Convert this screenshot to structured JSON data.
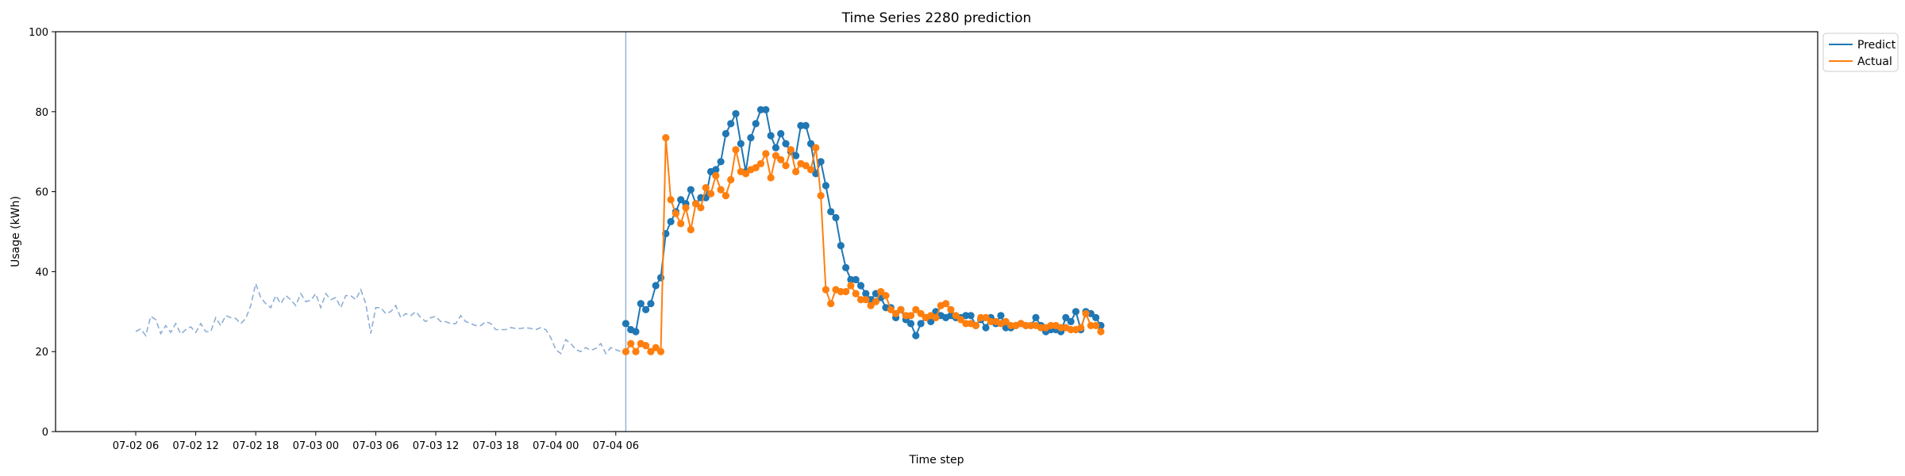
{
  "chart_data": {
    "type": "line",
    "title": "Time Series 2280 prediction",
    "xlabel": "Time step",
    "ylabel": "Usage (kWh)",
    "ylim": [
      0,
      100
    ],
    "y_ticks": [
      "0",
      "20",
      "40",
      "60",
      "80",
      "100"
    ],
    "x_ticks": [
      "07-02 06",
      "07-02 12",
      "07-02 18",
      "07-03 00",
      "07-03 06",
      "07-03 12",
      "07-03 18",
      "07-04 00",
      "07-04 06"
    ],
    "grid": false,
    "legend_position": "outside-top-right",
    "start": "07-02 06:00",
    "interval_minutes": 30,
    "forecast_start": "07-03 06:00",
    "colors": {
      "Predict": "#1f77b4",
      "Actual": "#ff7f0e",
      "history": "#8faed3",
      "divider": "#8faed3"
    },
    "history": {
      "style": "dashed",
      "values": [
        25.0,
        25.7,
        24.0,
        28.8,
        28.0,
        24.5,
        26.5,
        24.8,
        27.0,
        24.4,
        25.5,
        26.2,
        24.8,
        27.0,
        25.0,
        25.0,
        28.5,
        26.5,
        29.0,
        28.5,
        28.3,
        27.0,
        28.3,
        31.5,
        37.0,
        33.5,
        32.0,
        31.0,
        34.0,
        32.0,
        34.0,
        33.0,
        31.5,
        34.5,
        32.5,
        32.8,
        34.5,
        31.0,
        34.5,
        33.0,
        33.5,
        31.0,
        34.0,
        34.0,
        33.0,
        35.5,
        32.0,
        24.5,
        31.0,
        31.0,
        29.5,
        30.0,
        31.5,
        28.5,
        29.5,
        29.0,
        30.0,
        28.5,
        27.5,
        28.5,
        28.8,
        27.5,
        27.5,
        27.0,
        27.0,
        29.0,
        27.5,
        27.0,
        26.5,
        26.5,
        27.5,
        27.0,
        25.5,
        25.5,
        25.5,
        26.0,
        25.8,
        25.8,
        26.0,
        25.8,
        25.5,
        26.0,
        25.5,
        23.5,
        20.5,
        19.5,
        23.0,
        22.0,
        20.5,
        20.0,
        21.0,
        20.3,
        20.8,
        22.0,
        19.5,
        21.0,
        20.5,
        20.0
      ]
    },
    "series": [
      {
        "name": "Predict",
        "values": [
          27.0,
          25.5,
          25.0,
          32.0,
          30.5,
          32.0,
          36.5,
          38.5,
          49.5,
          52.5,
          55.0,
          58.0,
          57.0,
          60.5,
          57.0,
          58.5,
          58.5,
          65.0,
          65.5,
          67.5,
          74.5,
          77.0,
          79.5,
          72.0,
          65.0,
          73.5,
          77.0,
          80.5,
          80.5,
          74.0,
          71.0,
          74.5,
          72.0,
          70.0,
          69.0,
          76.5,
          76.5,
          72.0,
          64.5,
          67.5,
          61.5,
          55.0,
          53.5,
          46.5,
          41.0,
          38.0,
          38.0,
          36.5,
          34.5,
          33.0,
          34.5,
          33.5,
          31.0,
          31.0,
          28.5,
          30.5,
          28.0,
          27.0,
          24.0,
          27.0,
          28.5,
          27.5,
          30.0,
          29.0,
          28.5,
          29.0,
          28.5,
          28.5,
          29.0,
          29.0,
          26.5,
          28.0,
          26.0,
          28.5,
          27.0,
          29.0,
          26.0,
          26.0,
          26.5,
          27.0,
          26.5,
          26.5,
          28.5,
          26.5,
          25.0,
          25.5,
          25.5,
          25.0,
          28.5,
          27.5,
          30.0,
          25.5,
          30.0,
          29.5,
          28.5,
          26.5
        ]
      },
      {
        "name": "Actual",
        "values": [
          20.0,
          22.0,
          20.0,
          22.0,
          21.5,
          20.0,
          21.0,
          20.0,
          73.5,
          58.0,
          54.5,
          52.0,
          56.0,
          50.5,
          57.0,
          56.0,
          61.0,
          59.5,
          64.0,
          60.5,
          59.0,
          63.0,
          70.5,
          65.0,
          64.5,
          65.5,
          66.0,
          67.0,
          69.5,
          63.5,
          69.0,
          68.0,
          66.5,
          70.5,
          65.0,
          67.0,
          66.5,
          65.5,
          71.0,
          59.0,
          35.5,
          32.0,
          35.5,
          35.0,
          35.0,
          36.5,
          34.5,
          33.0,
          33.0,
          31.5,
          32.5,
          35.0,
          34.0,
          30.5,
          29.5,
          30.5,
          29.0,
          29.0,
          30.5,
          29.5,
          28.5,
          29.0,
          28.5,
          31.5,
          32.0,
          30.5,
          29.0,
          28.0,
          27.0,
          27.0,
          26.5,
          28.5,
          28.5,
          27.5,
          27.5,
          27.0,
          27.5,
          26.5,
          26.5,
          27.0,
          26.5,
          26.5,
          26.5,
          26.0,
          26.0,
          26.5,
          26.5,
          26.0,
          26.0,
          25.5,
          25.5,
          26.0,
          29.5,
          26.5,
          26.5,
          25.0
        ]
      }
    ]
  }
}
